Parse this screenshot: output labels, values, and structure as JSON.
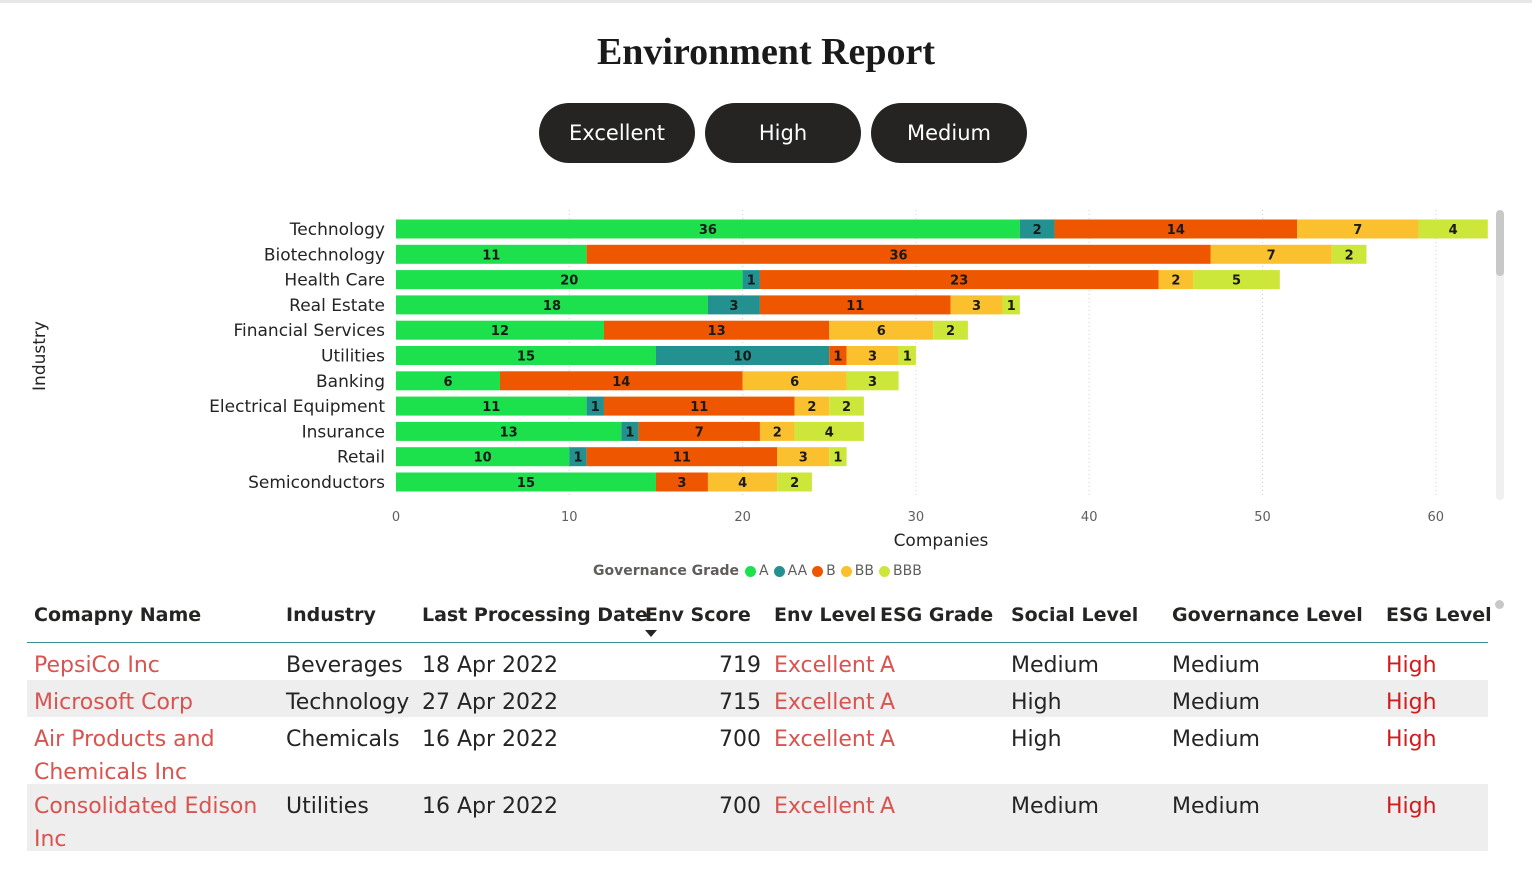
{
  "title": "Environment Report",
  "filters": [
    {
      "label": "Excellent"
    },
    {
      "label": "High"
    },
    {
      "label": "Medium"
    }
  ],
  "chart_data": {
    "type": "bar",
    "orientation": "horizontal",
    "stacked": true,
    "ylabel": "Industry",
    "xlabel": "Companies",
    "xlim": [
      0,
      63
    ],
    "xticks": [
      0,
      10,
      20,
      30,
      40,
      50,
      60
    ],
    "grid": "vertical dotted",
    "legend": {
      "title": "Governance Grade",
      "position": "bottom-center"
    },
    "categories": [
      "Technology",
      "Biotechnology",
      "Health Care",
      "Real Estate",
      "Financial Services",
      "Utilities",
      "Banking",
      "Electrical Equipment",
      "Insurance",
      "Retail",
      "Semiconductors"
    ],
    "series": [
      {
        "name": "A",
        "color": "#1ce04c",
        "values": [
          36,
          11,
          20,
          18,
          12,
          15,
          6,
          11,
          13,
          10,
          15
        ]
      },
      {
        "name": "AA",
        "color": "#22918f",
        "values": [
          2,
          0,
          1,
          3,
          0,
          10,
          0,
          1,
          1,
          1,
          0
        ]
      },
      {
        "name": "B",
        "color": "#ee5600",
        "values": [
          14,
          36,
          23,
          11,
          13,
          1,
          14,
          11,
          7,
          11,
          3
        ]
      },
      {
        "name": "BB",
        "color": "#fbc02d",
        "values": [
          7,
          7,
          2,
          3,
          6,
          3,
          6,
          2,
          2,
          3,
          4
        ]
      },
      {
        "name": "BBB",
        "color": "#cde63a",
        "values": [
          4,
          2,
          5,
          1,
          2,
          1,
          3,
          2,
          4,
          1,
          2
        ]
      }
    ]
  },
  "table": {
    "headers": {
      "company": "Comapny Name",
      "industry": "Industry",
      "date": "Last Processing Date",
      "env_score": "Env Score",
      "env_level": "Env Level",
      "esg_grade": "ESG Grade",
      "social": "Social Level",
      "governance": "Governance Level",
      "esg_level": "ESG Level"
    },
    "rows": [
      {
        "company": [
          "PepsiCo Inc"
        ],
        "industry": "Beverages",
        "date": "18 Apr 2022",
        "env_score": "719",
        "env_level": "Excellent",
        "esg_grade": "A",
        "social": "Medium",
        "governance": "Medium",
        "esg_level": "High"
      },
      {
        "company": [
          "Microsoft Corp"
        ],
        "industry": "Technology",
        "date": "27 Apr 2022",
        "env_score": "715",
        "env_level": "Excellent",
        "esg_grade": "A",
        "social": "High",
        "governance": "Medium",
        "esg_level": "High"
      },
      {
        "company": [
          "Air Products and",
          "Chemicals Inc"
        ],
        "industry": "Chemicals",
        "date": "16 Apr 2022",
        "env_score": "700",
        "env_level": "Excellent",
        "esg_grade": "A",
        "social": "High",
        "governance": "Medium",
        "esg_level": "High"
      },
      {
        "company": [
          "Consolidated Edison",
          "Inc"
        ],
        "industry": "Utilities",
        "date": "16 Apr 2022",
        "env_score": "700",
        "env_level": "Excellent",
        "esg_grade": "A",
        "social": "Medium",
        "governance": "Medium",
        "esg_level": "High"
      }
    ]
  }
}
